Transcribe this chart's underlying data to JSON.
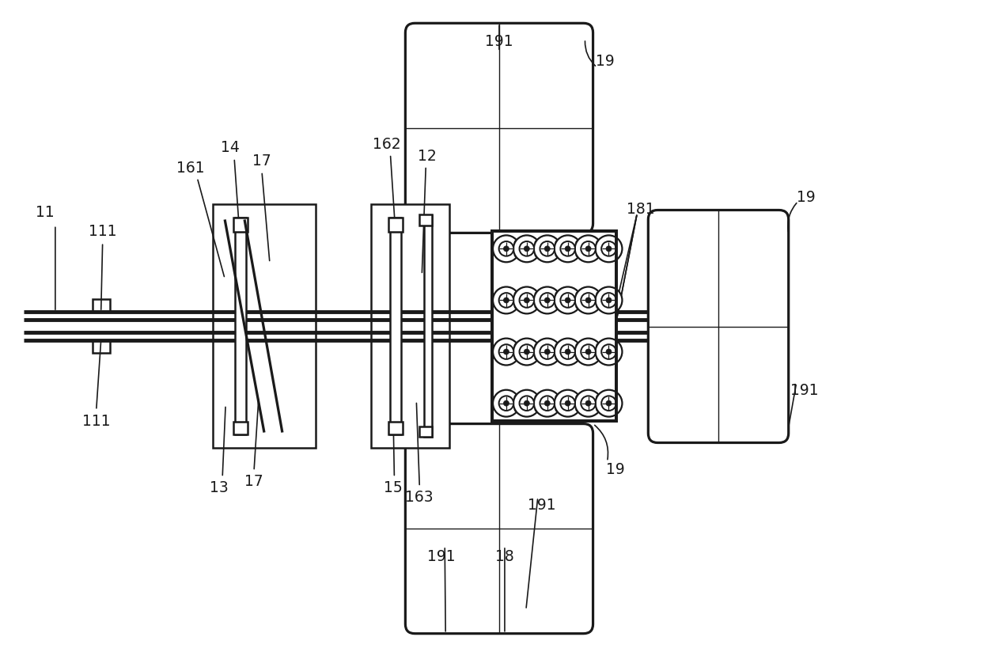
{
  "bg_color": "#ffffff",
  "lc": "#1a1a1a",
  "lw": 1.8,
  "tlw": 1.0,
  "fig_w": 12.4,
  "fig_h": 8.24,
  "dpi": 100
}
